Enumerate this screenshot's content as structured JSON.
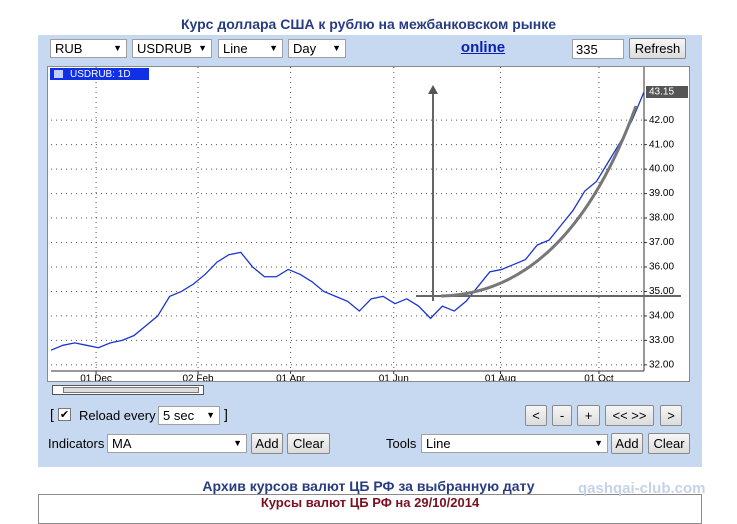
{
  "header": {
    "title": "Курс доллара США к рублю на межбанковском рынке"
  },
  "toolbar": {
    "currency": "RUB",
    "pair": "USDRUB",
    "chart_style": "Line",
    "period": "Day",
    "online_link": "online",
    "bars_count": "335",
    "refresh_button": "Refresh"
  },
  "chart_data": {
    "type": "line",
    "label": "USDRUB: 1D",
    "color": "#1a35d0",
    "grid": true,
    "values": [
      32.6,
      32.8,
      32.9,
      32.8,
      32.7,
      32.9,
      33.0,
      33.2,
      33.6,
      34.0,
      34.8,
      35.0,
      35.3,
      35.7,
      36.2,
      36.5,
      36.6,
      36.0,
      35.6,
      35.6,
      35.9,
      35.7,
      35.4,
      35.0,
      34.8,
      34.6,
      34.2,
      34.7,
      34.8,
      34.5,
      34.7,
      34.4,
      33.9,
      34.4,
      34.2,
      34.6,
      35.2,
      35.8,
      35.9,
      36.1,
      36.3,
      36.9,
      37.1,
      37.7,
      38.3,
      39.1,
      39.5,
      40.3,
      41.1,
      42.0,
      43.15
    ],
    "xlim": [
      0,
      50
    ],
    "xticks": [
      {
        "value": 3.8,
        "label": "01 Dec"
      },
      {
        "value": 12.4,
        "label": "02 Feb"
      },
      {
        "value": 20.2,
        "label": "01 Apr"
      },
      {
        "value": 28.9,
        "label": "01 Jun"
      },
      {
        "value": 37.9,
        "label": "01 Aug"
      },
      {
        "value": 46.2,
        "label": "01 Oct"
      }
    ],
    "ylim": [
      31.75,
      43.6
    ],
    "yticks": [
      {
        "value": 32,
        "label": "32.00"
      },
      {
        "value": 33,
        "label": "33.00"
      },
      {
        "value": 34,
        "label": "34.00"
      },
      {
        "value": 35,
        "label": "35.00"
      },
      {
        "value": 36,
        "label": "36.00"
      },
      {
        "value": 37,
        "label": "37.00"
      },
      {
        "value": 38,
        "label": "38.00"
      },
      {
        "value": 39,
        "label": "39.00"
      },
      {
        "value": 40,
        "label": "40.00"
      },
      {
        "value": 41,
        "label": "41.00"
      },
      {
        "value": 42,
        "label": "42.00"
      }
    ],
    "last_value_label": 43.15
  },
  "controls": {
    "reload_open": "[",
    "reload_label": "Reload every",
    "reload_interval": "5 sec",
    "reload_close": "]",
    "nav_buttons": [
      "<",
      "-",
      "+",
      "<< >>",
      ">"
    ],
    "indicators_label": "Indicators",
    "indicator": "MA",
    "indicator_add": "Add",
    "indicator_clear": "Clear",
    "tools_label": "Tools",
    "tool": "Line",
    "tool_add": "Add",
    "tool_clear": "Clear"
  },
  "archive": {
    "title": "Архив курсов валют ЦБ РФ за выбранную дату",
    "subtitle": "Курсы валют ЦБ РФ на 29/10/2014"
  },
  "watermark": "qashqai-club.com"
}
